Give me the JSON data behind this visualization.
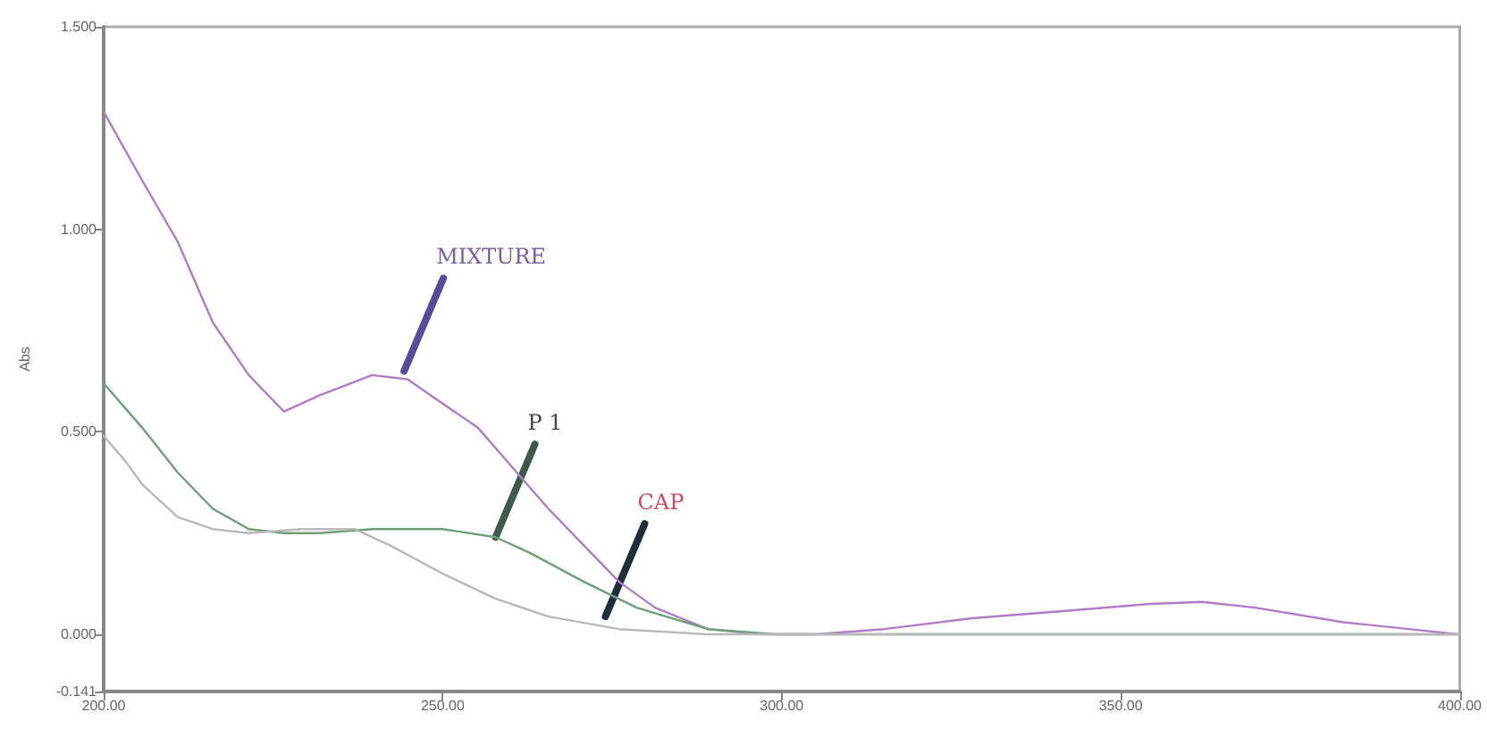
{
  "chart_data": {
    "type": "line",
    "ylabel": "Abs",
    "xlim": [
      200,
      400
    ],
    "xticks": [
      {
        "value": 200,
        "label": "200.00"
      },
      {
        "value": 250,
        "label": "250.00"
      },
      {
        "value": 300,
        "label": "300.00"
      },
      {
        "value": 350,
        "label": "350.00"
      },
      {
        "value": 400,
        "label": "400.00"
      }
    ],
    "ylim": [
      -0.141,
      1.5
    ],
    "yticks": [
      {
        "value": -0.141,
        "label": "-0.141"
      },
      {
        "value": 0,
        "label": "0.000"
      },
      {
        "value": 0.5,
        "label": "0.500"
      },
      {
        "value": 1,
        "label": "1.000"
      },
      {
        "value": 1.5,
        "label": "1.500"
      }
    ],
    "grid": false,
    "marker": "none",
    "line_style": "solid",
    "series": [
      {
        "color": "#b07cc6",
        "x": [
          200,
          205.7,
          210.9,
          216.1,
          221.4,
          226.6,
          231.8,
          239.6,
          244.8,
          250,
          255.2,
          260.4,
          265.6,
          270.8,
          276,
          281.3,
          289.1,
          296.9,
          304.7,
          315.1,
          328.1,
          341.1,
          354.2,
          362,
          369.8,
          382.8,
          400
        ],
        "values": [
          1.29,
          1.12,
          0.97,
          0.77,
          0.64,
          0.55,
          0.59,
          0.64,
          0.63,
          0.57,
          0.51,
          0.41,
          0.31,
          0.22,
          0.13,
          0.066,
          0.013,
          0,
          0,
          0.013,
          0.04,
          0.057,
          0.075,
          0.08,
          0.066,
          0.03,
          0
        ]
      },
      {
        "color": "#6f9e7a",
        "x": [
          200,
          205.7,
          210.9,
          216.1,
          221.4,
          226.6,
          231.8,
          239.6,
          250,
          257.8,
          263,
          270.8,
          278.6,
          289.1,
          299.5,
          315.1,
          341.1,
          367.2,
          400
        ],
        "values": [
          0.62,
          0.51,
          0.4,
          0.31,
          0.26,
          0.25,
          0.25,
          0.26,
          0.26,
          0.24,
          0.2,
          0.13,
          0.066,
          0.013,
          0,
          0,
          0,
          0,
          0
        ]
      },
      {
        "color": "#b8b8b8",
        "x": [
          200,
          203.1,
          205.7,
          210.9,
          216.1,
          221.4,
          229.2,
          237,
          242.2,
          250,
          257.8,
          265.6,
          276,
          289.1,
          400
        ],
        "values": [
          0.49,
          0.43,
          0.37,
          0.29,
          0.26,
          0.25,
          0.26,
          0.26,
          0.22,
          0.15,
          0.088,
          0.044,
          0.013,
          0,
          0
        ]
      }
    ],
    "annotations": [
      {
        "text": "MIXTURE",
        "x": 244.3,
        "y": 0.65
      },
      {
        "text": "P 1",
        "x": 257.8,
        "y": 0.24
      },
      {
        "text": "CAP",
        "x": 274,
        "y": 0.044
      }
    ]
  }
}
